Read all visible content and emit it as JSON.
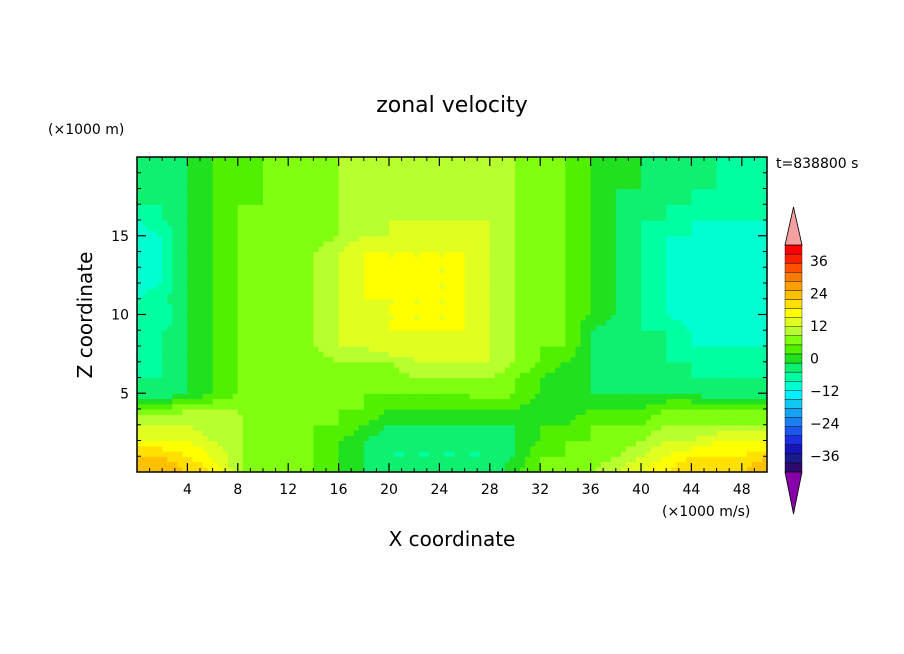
{
  "chart_data": {
    "type": "heatmap",
    "title": "zonal velocity",
    "xlabel": "X coordinate",
    "ylabel": "Z coordinate",
    "y_unit": "(×1000 m)",
    "colorbar_unit": "(×1000 m/s)",
    "time_label": "t=838800 s",
    "xlim": [
      0,
      50
    ],
    "ylim": [
      0,
      20
    ],
    "x_ticks": [
      4,
      8,
      12,
      16,
      20,
      24,
      28,
      32,
      36,
      40,
      44,
      48
    ],
    "y_ticks": [
      5,
      10,
      15
    ],
    "colorbar": {
      "levels": [
        -42,
        -39,
        -36,
        -33,
        -30,
        -27,
        -24,
        -21,
        -18,
        -15,
        -12,
        -9,
        -6,
        -3,
        0,
        3,
        6,
        9,
        12,
        15,
        18,
        21,
        24,
        27,
        30,
        33,
        36,
        39,
        42
      ],
      "tick_labels": [
        "-36",
        "-24",
        "-12",
        "0",
        "12",
        "24",
        "36"
      ],
      "tick_values": [
        -36,
        -24,
        -12,
        0,
        12,
        24,
        36
      ],
      "colors": [
        "#2e0a6e",
        "#1a1a8a",
        "#1515b8",
        "#1c2ee0",
        "#1c55f0",
        "#1a7ff0",
        "#18a2f5",
        "#10c8f0",
        "#00f0ff",
        "#00ffd0",
        "#00ffa0",
        "#10f070",
        "#20e020",
        "#50f000",
        "#80ff10",
        "#b8ff30",
        "#e0ff20",
        "#ffff00",
        "#ffe000",
        "#ffc000",
        "#ffa000",
        "#ff7a00",
        "#ff5000",
        "#ff2000",
        "#ff0000"
      ],
      "under_color": "#8800aa",
      "over_color": "#f5a0a0"
    },
    "grid": {
      "x": [
        0,
        2,
        4,
        6,
        8,
        10,
        12,
        14,
        16,
        18,
        20,
        22,
        24,
        26,
        28,
        30,
        32,
        34,
        36,
        38,
        40,
        42,
        44,
        46,
        48,
        50
      ],
      "z": [
        0,
        1,
        2,
        3,
        4,
        5,
        6,
        7,
        8,
        9,
        10,
        11,
        12,
        13,
        14,
        15,
        16,
        17,
        18,
        19,
        20
      ],
      "u": [
        [
          18,
          18,
          15,
          12,
          4,
          0,
          0,
          0,
          -3,
          -6,
          -6,
          -6,
          -6,
          -9,
          -9,
          -3,
          0,
          0,
          3,
          6,
          9,
          12,
          15,
          15,
          15,
          18
        ],
        [
          15,
          15,
          12,
          9,
          4,
          0,
          0,
          0,
          -3,
          -6,
          -9,
          -9,
          -9,
          -9,
          -9,
          -6,
          0,
          0,
          0,
          3,
          6,
          9,
          12,
          12,
          12,
          15
        ],
        [
          9,
          9,
          9,
          6,
          4,
          0,
          0,
          0,
          -3,
          -6,
          -9,
          -9,
          -9,
          -9,
          -9,
          -6,
          -3,
          0,
          0,
          0,
          3,
          6,
          6,
          9,
          9,
          9
        ],
        [
          6,
          6,
          6,
          4,
          4,
          0,
          0,
          0,
          0,
          -3,
          -6,
          -6,
          -6,
          -6,
          -6,
          -6,
          -3,
          -3,
          0,
          0,
          0,
          3,
          3,
          3,
          3,
          3
        ],
        [
          0,
          0,
          3,
          3,
          3,
          0,
          0,
          0,
          0,
          0,
          -3,
          -3,
          -3,
          -3,
          -3,
          -3,
          -6,
          -6,
          -3,
          -3,
          -3,
          0,
          0,
          0,
          0,
          0
        ],
        [
          -9,
          -9,
          -6,
          -3,
          0,
          0,
          0,
          0,
          0,
          0,
          0,
          0,
          0,
          0,
          3,
          0,
          -3,
          -6,
          -6,
          -6,
          -6,
          -6,
          -6,
          -9,
          -9,
          -9
        ],
        [
          -9,
          -9,
          -6,
          -3,
          0,
          0,
          0,
          0,
          0,
          0,
          0,
          3,
          3,
          3,
          3,
          0,
          -3,
          -6,
          -6,
          -9,
          -9,
          -9,
          -9,
          -9,
          -9,
          -9
        ],
        [
          -12,
          -9,
          -6,
          -3,
          0,
          0,
          0,
          0,
          3,
          3,
          3,
          6,
          6,
          6,
          6,
          3,
          0,
          -3,
          -6,
          -9,
          -9,
          -9,
          -9,
          -12,
          -12,
          -12
        ],
        [
          -12,
          -9,
          -6,
          -3,
          0,
          0,
          0,
          3,
          6,
          6,
          9,
          6,
          6,
          6,
          6,
          3,
          0,
          0,
          -6,
          -9,
          -9,
          -9,
          -12,
          -12,
          -12,
          -12
        ],
        [
          -12,
          -9,
          -6,
          -3,
          0,
          0,
          0,
          3,
          6,
          6,
          9,
          9,
          9,
          9,
          6,
          3,
          0,
          0,
          -6,
          -9,
          -9,
          -9,
          -12,
          -15,
          -15,
          -15
        ],
        [
          -12,
          -12,
          -6,
          -3,
          0,
          0,
          0,
          3,
          6,
          6,
          9,
          9,
          9,
          9,
          6,
          3,
          0,
          0,
          -3,
          -6,
          -9,
          -12,
          -15,
          -15,
          -15,
          -15
        ],
        [
          -12,
          -9,
          -6,
          -3,
          0,
          0,
          0,
          3,
          6,
          9,
          9,
          9,
          9,
          9,
          6,
          3,
          0,
          0,
          -3,
          -6,
          -9,
          -12,
          -15,
          -15,
          -15,
          -15
        ],
        [
          -15,
          -12,
          -6,
          -3,
          0,
          0,
          0,
          3,
          6,
          9,
          12,
          12,
          9,
          9,
          6,
          3,
          0,
          0,
          -3,
          -6,
          -9,
          -12,
          -15,
          -15,
          -15,
          -15
        ],
        [
          -15,
          -12,
          -6,
          -3,
          0,
          0,
          0,
          3,
          6,
          9,
          9,
          9,
          9,
          9,
          6,
          3,
          0,
          0,
          -3,
          -6,
          -9,
          -12,
          -15,
          -15,
          -15,
          -15
        ],
        [
          -15,
          -12,
          -6,
          -3,
          0,
          0,
          0,
          3,
          6,
          9,
          9,
          9,
          9,
          9,
          6,
          3,
          0,
          0,
          -3,
          -6,
          -9,
          -12,
          -15,
          -15,
          -15,
          -15
        ],
        [
          -15,
          -12,
          -6,
          -3,
          0,
          0,
          0,
          0,
          3,
          6,
          6,
          6,
          9,
          6,
          6,
          3,
          0,
          0,
          -3,
          -6,
          -9,
          -12,
          -12,
          -15,
          -15,
          -15
        ],
        [
          -12,
          -9,
          -6,
          -3,
          0,
          0,
          0,
          0,
          3,
          3,
          6,
          6,
          6,
          6,
          6,
          3,
          0,
          0,
          -3,
          -6,
          -9,
          -9,
          -12,
          -12,
          -12,
          -12
        ],
        [
          -9,
          -9,
          -6,
          -3,
          0,
          0,
          0,
          0,
          3,
          3,
          3,
          3,
          3,
          3,
          3,
          3,
          0,
          0,
          -3,
          -6,
          -9,
          -9,
          -9,
          -12,
          -12,
          -12
        ],
        [
          -9,
          -9,
          -6,
          -3,
          -3,
          0,
          0,
          0,
          3,
          3,
          3,
          3,
          3,
          3,
          3,
          3,
          0,
          0,
          -3,
          -6,
          -6,
          -9,
          -9,
          -9,
          -12,
          -12
        ],
        [
          -9,
          -9,
          -6,
          -3,
          -3,
          0,
          0,
          0,
          3,
          3,
          3,
          3,
          3,
          3,
          3,
          3,
          0,
          0,
          -3,
          -6,
          -6,
          -9,
          -9,
          -9,
          -12,
          -12
        ],
        [
          -9,
          -9,
          -6,
          -3,
          -3,
          0,
          0,
          0,
          3,
          3,
          3,
          3,
          3,
          3,
          3,
          3,
          0,
          0,
          -3,
          -6,
          -6,
          -9,
          -9,
          -9,
          -12,
          -12
        ]
      ]
    }
  }
}
